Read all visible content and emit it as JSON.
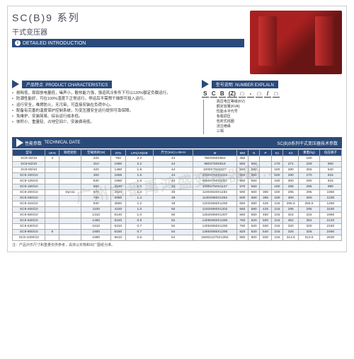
{
  "header": {
    "title": "SC(B)9 系列",
    "subtitle": "干式变压器",
    "intro": "DETAILED INTRODUCTION"
  },
  "watermark": "广州市番禹鸿盛变压器制…",
  "sections": {
    "char": {
      "cn": "产品特点",
      "en": "PRODUCT CHARACTERISTICS"
    },
    "num": {
      "cn": "型号说明",
      "en": "NUMBER EXPLALN"
    },
    "tech": {
      "cn": "性能参数",
      "en": "TECHNICAL DATE",
      "right": "SC(B)9系列干式变压器技术参数"
    }
  },
  "characteristics": [
    "损耗低，局部放电量低，噪声小，散热能力强，强迫风冷条件下可以120%额定负载运行。",
    "防潮性能好，可在100%湿度下正常运行，停运后不需预干燥即可投入运行。",
    "运行安全，难燃防火，无污染，可直接安装在负荷中心。",
    "配备有完善的温度保护控制系统，为变压器安全运行提供可靠保障。",
    "免维护、安装简易、综合运行成本低。",
    "体积小、重量轻、占地空间少、安装费用低。"
  ],
  "scb": {
    "letters": [
      "S",
      "C",
      "B",
      "(Z)",
      "□",
      "-",
      "□",
      "/",
      "□"
    ]
  },
  "explain": [
    "高压电压等级(KV)",
    "额定容量(KVA)",
    "性能水平代号",
    "有载调压",
    "包封式线圈",
    "浇注绝缘",
    "三相"
  ],
  "table": {
    "headers": [
      "型号",
      "UK%",
      "联结组别",
      "空载损耗(W)",
      "IO%",
      "LPA(AN)DB",
      "尺寸(mm) L×B×H",
      "M",
      "MM",
      "N",
      "P",
      "K1",
      "K2",
      "重量(kg)",
      "低压端子"
    ],
    "rows": [
      [
        "SC9-30/10",
        "4",
        "",
        "220",
        "750",
        "2.2",
        "44",
        "780X550X862",
        "450",
        "",
        "",
        "",
        "",
        "180",
        ""
      ],
      [
        "SC9-50/10",
        "",
        "",
        "310",
        "1060",
        "2.2",
        "44",
        "950X750X915",
        "550",
        "550",
        "",
        "170",
        "271",
        "229",
        "500"
      ],
      [
        "SC9-80/10",
        "",
        "",
        "420",
        "1460",
        "1.6",
        "44",
        "1000X750X977",
        "550",
        "550",
        "",
        "180",
        "280",
        "255",
        "540"
      ],
      [
        "SC9-100/10",
        "",
        "",
        "460",
        "1665",
        "1.6",
        "44",
        "1030X760X1022",
        "550",
        "550",
        "",
        "180",
        "290",
        "270",
        "615"
      ],
      [
        "SC9-125/10",
        "",
        "",
        "530",
        "1960",
        "1.6",
        "44",
        "1050X750X1057",
        "550",
        "550",
        "",
        "180",
        "300",
        "290",
        "815"
      ],
      [
        "SC9-160/10",
        "",
        "",
        "590",
        "2240",
        "1.4",
        "44",
        "1080X750X1147",
        "570",
        "550",
        "",
        "180",
        "295",
        "295",
        "980"
      ],
      [
        "SC9-200/10",
        "",
        "Dyn11",
        "670",
        "2620",
        "1.4",
        "46",
        "1100X820X1192",
        "590",
        "560",
        "380",
        "180",
        "295",
        "295",
        "1060"
      ],
      [
        "SC9-250/10",
        "",
        "",
        "790",
        "3050",
        "1.2",
        "48",
        "1130X860X1262",
        "600",
        "560",
        "395",
        "180",
        "300",
        "300",
        "1230"
      ],
      [
        "SC9-315/10",
        "",
        "",
        "930",
        "3660",
        "1.2",
        "48",
        "1203X860X1292",
        "660",
        "580",
        "425",
        "215",
        "265.5",
        "265.5",
        "1260"
      ],
      [
        "SC9-400/10",
        "",
        "",
        "1100",
        "4220",
        "1.0",
        "50",
        "1240X860X1302",
        "660",
        "580",
        "425",
        "215",
        "295",
        "295",
        "1530"
      ],
      [
        "SC9-500/10",
        "",
        "",
        "1310",
        "5140",
        "1.0",
        "50",
        "1253X860X1307",
        "660",
        "560",
        "450",
        "215",
        "315",
        "315",
        "1960"
      ],
      [
        "SC9-630/10",
        "",
        "",
        "1460",
        "6220",
        "0.8",
        "52",
        "1408X860X1280",
        "760",
        "620",
        "500",
        "215",
        "352",
        "352",
        "2120"
      ],
      [
        "SC9-630/10",
        "",
        "",
        "1510",
        "5310",
        "0.7",
        "52",
        "1405X860X1280",
        "760",
        "620",
        "500",
        "215",
        "320",
        "320",
        "2150"
      ],
      [
        "SC9-800/10",
        "6",
        "",
        "1800",
        "6150",
        "0.7",
        "54",
        "1465X860X1290",
        "820",
        "620",
        "540",
        "215",
        "325",
        "325",
        "2460"
      ],
      [
        "SC9-1000/10",
        "",
        "",
        "1990",
        "8610",
        "0.5",
        "54",
        "1506X1275X1394",
        "850",
        "800",
        "600",
        "215",
        "313.5",
        "313.5",
        "2630"
      ]
    ]
  },
  "note": "注：产品外形尺寸和重量仅供参考，具体以实物和出厂图纸为准。"
}
